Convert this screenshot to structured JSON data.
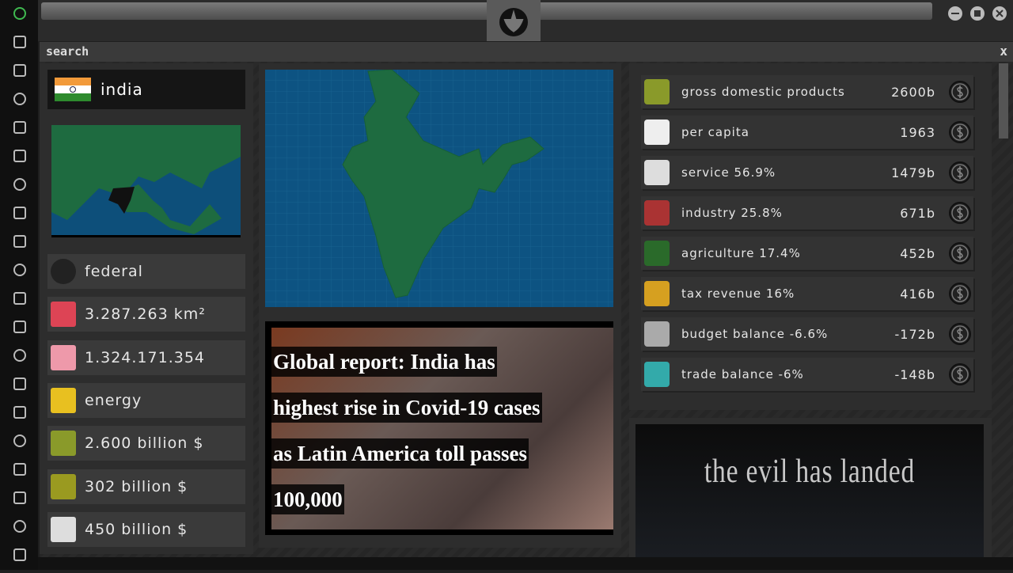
{
  "search": {
    "label": "search",
    "close": "x"
  },
  "country": {
    "name": "india",
    "facts": [
      "federal",
      "3.287.263 km²",
      "1.324.171.354",
      "energy",
      "2.600 billion $",
      "302 billion $",
      "450 billion $"
    ]
  },
  "news": {
    "headline": "Global report: India has highest rise in Covid-19 cases as Latin America toll passes 100,000"
  },
  "economy": [
    {
      "label": "gross domestic products",
      "value": "2600b"
    },
    {
      "label": "per capita",
      "value": "1963"
    },
    {
      "label": "service 56.9%",
      "value": "1479b"
    },
    {
      "label": "industry 25.8%",
      "value": "671b"
    },
    {
      "label": "agriculture 17.4%",
      "value": "452b"
    },
    {
      "label": "tax revenue 16%",
      "value": "416b"
    },
    {
      "label": "budget balance -6.6%",
      "value": "-172b"
    },
    {
      "label": "trade balance -6%",
      "value": "-148b"
    }
  ],
  "promo": {
    "title": "the evil has landed"
  }
}
